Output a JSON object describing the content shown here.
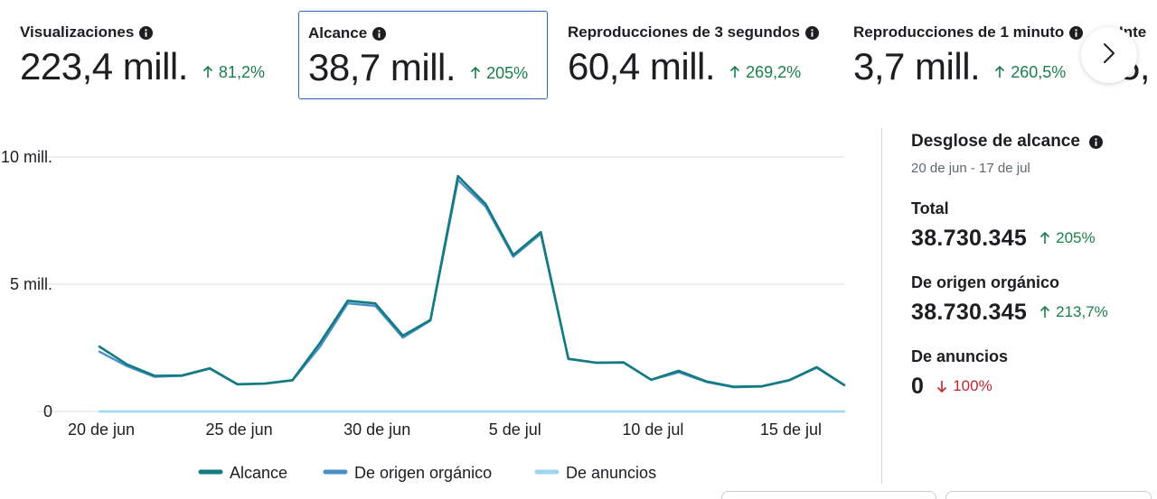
{
  "metrics": [
    {
      "title": "Visualizaciones",
      "value": "223,4 mill.",
      "delta": "81,2%",
      "direction": "up",
      "selected": false
    },
    {
      "title": "Alcance",
      "value": "38,7 mill.",
      "delta": "205%",
      "direction": "up",
      "selected": true
    },
    {
      "title": "Reproducciones de 3 segundos",
      "value": "60,4 mill.",
      "delta": "269,2%",
      "direction": "up",
      "selected": false
    },
    {
      "title": "Reproducciones de 1 minuto",
      "value": "3,7 mill.",
      "delta": "260,5%",
      "direction": "up",
      "selected": false
    },
    {
      "title": "Inte",
      "value": "5,",
      "delta": "",
      "direction": "",
      "selected": false
    }
  ],
  "carousel": {
    "next_icon": "chevron-right-icon"
  },
  "chart_data": {
    "type": "line",
    "x_tick_labels": [
      "20 de jun",
      "25 de jun",
      "30 de jun",
      "5 de jul",
      "10 de jul",
      "15 de jul"
    ],
    "y_tick_labels": [
      "0",
      "5 mill.",
      "10 mill."
    ],
    "ylim": [
      0,
      10000000
    ],
    "x_dates": [
      "20 jun",
      "21 jun",
      "22 jun",
      "23 jun",
      "24 jun",
      "25 jun",
      "26 jun",
      "27 jun",
      "28 jun",
      "29 jun",
      "30 jun",
      "1 jul",
      "2 jul",
      "3 jul",
      "4 jul",
      "5 jul",
      "6 jul",
      "7 jul",
      "8 jul",
      "9 jul",
      "10 jul",
      "11 jul",
      "12 jul",
      "13 jul",
      "14 jul",
      "15 jul",
      "16 jul",
      "17 jul"
    ],
    "series": [
      {
        "name": "Alcance",
        "color": "#137a80",
        "values": [
          2550000,
          1850000,
          1400000,
          1420000,
          1700000,
          1070000,
          1100000,
          1230000,
          2700000,
          4350000,
          4250000,
          2980000,
          3600000,
          9250000,
          8150000,
          6150000,
          7050000,
          2070000,
          1920000,
          1930000,
          1250000,
          1600000,
          1180000,
          970000,
          990000,
          1230000,
          1740000,
          1040000
        ]
      },
      {
        "name": "De origen orgánico",
        "color": "#4a90c8",
        "values": [
          2350000,
          1780000,
          1360000,
          1400000,
          1680000,
          1060000,
          1090000,
          1220000,
          2550000,
          4250000,
          4150000,
          2900000,
          3570000,
          9100000,
          8050000,
          6080000,
          6980000,
          2060000,
          1910000,
          1920000,
          1240000,
          1540000,
          1160000,
          950000,
          980000,
          1220000,
          1720000,
          1030000
        ]
      },
      {
        "name": "De anuncios",
        "color": "#9dd6ee",
        "values": [
          0,
          0,
          0,
          0,
          0,
          0,
          0,
          0,
          0,
          0,
          0,
          0,
          0,
          0,
          0,
          0,
          0,
          0,
          0,
          0,
          0,
          0,
          0,
          0,
          0,
          0,
          0,
          0
        ]
      }
    ],
    "grid": true,
    "legend_position": "bottom"
  },
  "panel": {
    "title": "Desglose de alcance",
    "date_range": "20 de jun - 17 de jul",
    "items": [
      {
        "label": "Total",
        "value": "38.730.345",
        "delta": "205%",
        "direction": "up"
      },
      {
        "label": "De origen orgánico",
        "value": "38.730.345",
        "delta": "213,7%",
        "direction": "up"
      },
      {
        "label": "De anuncios",
        "value": "0",
        "delta": "100%",
        "direction": "down"
      }
    ]
  },
  "colors": {
    "up": "#1a7f4b",
    "down": "#c0262f",
    "selected_border": "#3b6fb3"
  }
}
